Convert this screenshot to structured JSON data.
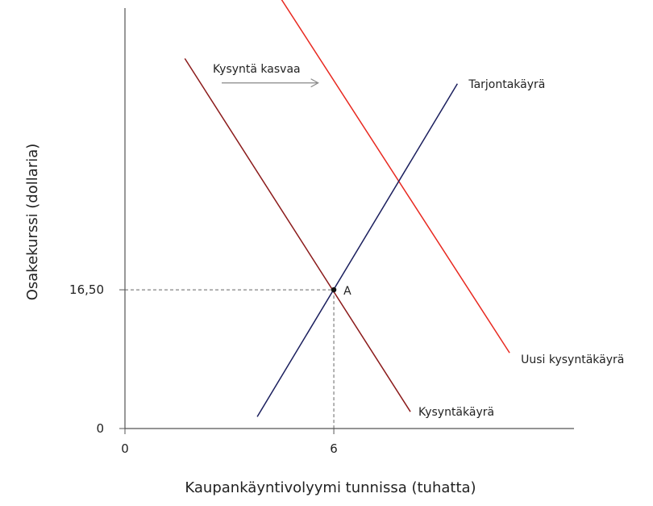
{
  "chart_data": {
    "type": "line",
    "xlabel": "Kaupankäyntivolyymi tunnissa (tuhatta)",
    "ylabel": "Osakekurssi (dollaria)",
    "x_ticks": [
      {
        "value": 0,
        "label": "0"
      },
      {
        "value": 6,
        "label": "6"
      }
    ],
    "y_ticks": [
      {
        "value": 0,
        "label": "0"
      },
      {
        "value": 16.5,
        "label": "16,50"
      }
    ],
    "xlim": [
      0,
      12.9
    ],
    "ylim": [
      0,
      50
    ],
    "grid": false,
    "series": [
      {
        "key": "demand",
        "name": "Kysyntäkäyrä",
        "color": "#8b1a1a",
        "points": [
          [
            1.72,
            44
          ],
          [
            8.2,
            2
          ]
        ]
      },
      {
        "key": "new_demand",
        "name": "Uusi kysyntäkäyrä",
        "color": "#e8281f",
        "points": [
          [
            4.5,
            51
          ],
          [
            11.05,
            9
          ]
        ]
      },
      {
        "key": "supply",
        "name": "Tarjontakäyrä",
        "color": "#1b1f5e",
        "points": [
          [
            3.8,
            1.4
          ],
          [
            9.55,
            41
          ]
        ]
      }
    ],
    "equilibrium": {
      "label": "A",
      "x": 6,
      "y": 16.5
    },
    "annotation": {
      "text": "Kysyntä kasvaa",
      "from": [
        2.78,
        41.1
      ],
      "to": [
        5.55,
        41.1
      ]
    }
  }
}
